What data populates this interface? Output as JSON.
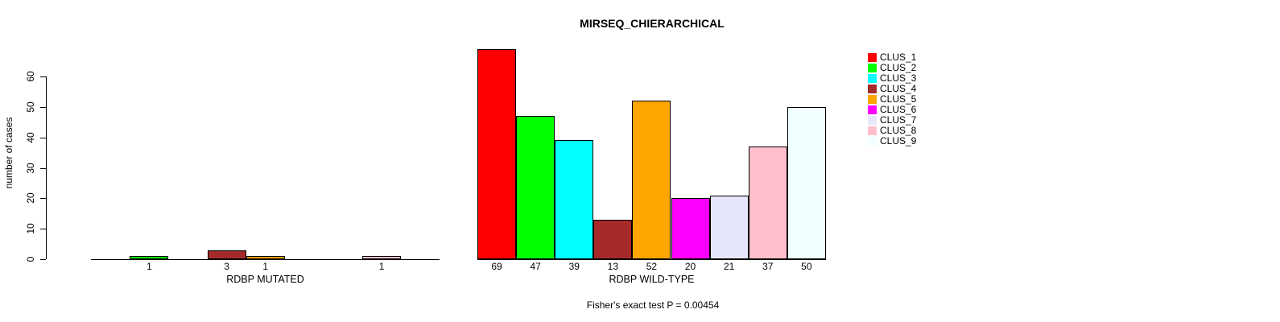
{
  "chart_data": {
    "type": "bar",
    "title": "MIRSEQ_CHIERARCHICAL",
    "ylabel": "number of cases",
    "ylim": [
      0,
      60
    ],
    "yticks": [
      0,
      10,
      20,
      30,
      40,
      50,
      60
    ],
    "grid": false,
    "legend_position": "right",
    "annotation": "Fisher's exact test P = 0.00454",
    "clusters": [
      {
        "label": "CLUS_1",
        "color": "#FF0000"
      },
      {
        "label": "CLUS_2",
        "color": "#00FF00"
      },
      {
        "label": "CLUS_3",
        "color": "#00FFFF"
      },
      {
        "label": "CLUS_4",
        "color": "#A52A2A"
      },
      {
        "label": "CLUS_5",
        "color": "#FFA500"
      },
      {
        "label": "CLUS_6",
        "color": "#FF00FF"
      },
      {
        "label": "CLUS_7",
        "color": "#E6E6FA"
      },
      {
        "label": "CLUS_8",
        "color": "#FFC0CB"
      },
      {
        "label": "CLUS_9",
        "color": "#F0FFFF"
      }
    ],
    "panels": [
      {
        "xlabel": "RDBP MUTATED",
        "values": [
          0,
          1,
          0,
          3,
          1,
          0,
          0,
          1,
          0
        ],
        "bar_labels": [
          "",
          "1",
          "",
          "3",
          "1",
          "",
          "",
          "1",
          ""
        ]
      },
      {
        "xlabel": "RDBP WILD-TYPE",
        "values": [
          69,
          47,
          39,
          13,
          52,
          20,
          21,
          37,
          50
        ],
        "bar_labels": [
          "69",
          "47",
          "39",
          "13",
          "52",
          "20",
          "21",
          "37",
          "50"
        ]
      }
    ]
  }
}
